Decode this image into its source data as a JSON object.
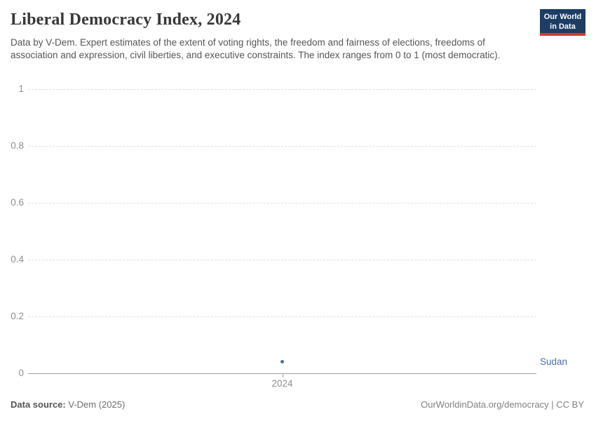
{
  "header": {
    "title": "Liberal Democracy Index, 2024",
    "subtitle": "Data by V-Dem. Expert estimates of the extent of voting rights, the freedom and fairness of elections, freedoms of association and expression, civil liberties, and executive constraints. The index ranges from 0 to 1 (most democratic).",
    "logo": {
      "line1": "Our World",
      "line2": "in Data",
      "bg_color": "#1d3d63",
      "accent_color": "#cf3b33"
    }
  },
  "chart_data": {
    "type": "scatter",
    "title": "Liberal Democracy Index, 2024",
    "x": [
      2024
    ],
    "xtick_labels": [
      "2024"
    ],
    "series": [
      {
        "name": "Sudan",
        "values": [
          0.04
        ],
        "color": "#4c6fa8"
      }
    ],
    "xlabel": "",
    "ylabel": "",
    "ylim": [
      0,
      1
    ],
    "yticks": [
      0,
      0.2,
      0.4,
      0.6,
      0.8,
      1
    ],
    "ytick_labels": [
      "0",
      "0.2",
      "0.4",
      "0.6",
      "0.8",
      "1"
    ],
    "grid": "horizontal-dashed",
    "legend_position": "right-of-point"
  },
  "footer": {
    "source_label": "Data source:",
    "source_value": " V-Dem (2025)",
    "link_text": "OurWorldinData.org/democracy | CC BY"
  }
}
